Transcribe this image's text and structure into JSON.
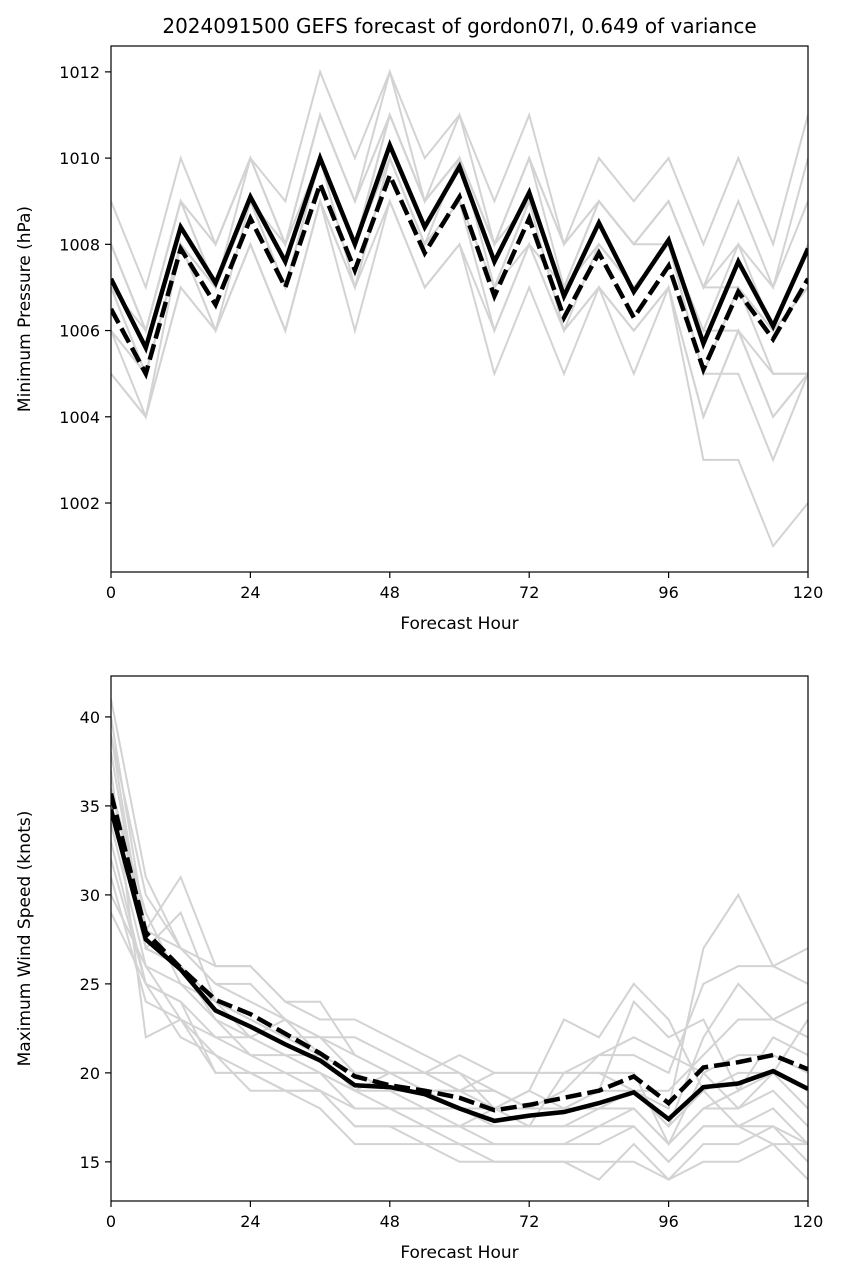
{
  "colors": {
    "member": "#d3d3d3",
    "mean": "#000000",
    "background": "#ffffff"
  },
  "chart_data": [
    {
      "type": "line",
      "title": "2024091500 GEFS forecast of gordon07l, 0.649 of variance",
      "xlabel": "Forecast Hour",
      "ylabel": "Minimum Pressure (hPa)",
      "xlim": [
        0,
        120
      ],
      "ylim": [
        1000.4,
        1012.6
      ],
      "xticks": [
        0,
        24,
        48,
        72,
        96,
        120
      ],
      "yticks": [
        1002,
        1004,
        1006,
        1008,
        1010,
        1012
      ],
      "x": [
        0,
        6,
        12,
        18,
        24,
        30,
        36,
        42,
        48,
        54,
        60,
        66,
        72,
        78,
        84,
        90,
        96,
        102,
        108,
        114,
        120
      ],
      "members": [
        [
          1009,
          1007,
          1010,
          1008,
          1010,
          1009,
          1012,
          1010,
          1012,
          1010,
          1011,
          1009,
          1011,
          1008,
          1010,
          1009,
          1010,
          1008,
          1010,
          1008,
          1011
        ],
        [
          1008,
          1006,
          1009,
          1008,
          1010,
          1008,
          1011,
          1009,
          1012,
          1009,
          1011,
          1008,
          1010,
          1008,
          1009,
          1008,
          1009,
          1007,
          1009,
          1007,
          1010
        ],
        [
          1008,
          1006,
          1009,
          1007,
          1010,
          1008,
          1011,
          1009,
          1011,
          1009,
          1010,
          1008,
          1010,
          1007,
          1009,
          1008,
          1009,
          1007,
          1008,
          1007,
          1009
        ],
        [
          1007,
          1005,
          1008,
          1007,
          1009,
          1007,
          1010,
          1008,
          1011,
          1009,
          1010,
          1008,
          1009,
          1007,
          1008,
          1007,
          1008,
          1006,
          1008,
          1006,
          1008
        ],
        [
          1006,
          1005,
          1008,
          1007,
          1009,
          1007,
          1010,
          1008,
          1010,
          1008,
          1010,
          1007,
          1009,
          1007,
          1008,
          1007,
          1008,
          1005,
          1007,
          1006,
          1007
        ],
        [
          1006,
          1004,
          1008,
          1006,
          1009,
          1007,
          1010,
          1007,
          1010,
          1008,
          1009,
          1007,
          1009,
          1006,
          1008,
          1007,
          1008,
          1005,
          1007,
          1006,
          1007
        ],
        [
          1005,
          1004,
          1007,
          1006,
          1008,
          1006,
          1009,
          1007,
          1010,
          1008,
          1009,
          1006,
          1008,
          1006,
          1007,
          1006,
          1007,
          1004,
          1006,
          1005,
          1005
        ],
        [
          1005,
          1004,
          1007,
          1006,
          1008,
          1006,
          1009,
          1006,
          1009,
          1007,
          1008,
          1005,
          1007,
          1005,
          1007,
          1005,
          1007,
          1004,
          1006,
          1004,
          1005
        ],
        [
          1006,
          1005,
          1008,
          1006,
          1008,
          1006,
          1009,
          1007,
          1009,
          1007,
          1008,
          1006,
          1008,
          1006,
          1007,
          1006,
          1007,
          1003,
          1003,
          1001,
          1002
        ],
        [
          1007,
          1005,
          1008,
          1007,
          1009,
          1007,
          1010,
          1008,
          1010,
          1008,
          1009,
          1007,
          1008,
          1007,
          1008,
          1007,
          1008,
          1005,
          1005,
          1003,
          1005
        ],
        [
          1007,
          1006,
          1009,
          1007,
          1009,
          1008,
          1010,
          1008,
          1011,
          1009,
          1010,
          1008,
          1009,
          1007,
          1009,
          1008,
          1008,
          1006,
          1006,
          1004,
          1005
        ],
        [
          1008,
          1006,
          1009,
          1008,
          1010,
          1008,
          1011,
          1009,
          1011,
          1009,
          1010,
          1008,
          1010,
          1008,
          1009,
          1008,
          1009,
          1007,
          1007,
          1005,
          1005
        ]
      ],
      "series": [
        {
          "values": [
            1007.2,
            1005.6,
            1008.4,
            1007.1,
            1009.1,
            1007.6,
            1010.0,
            1008.0,
            1010.3,
            1008.4,
            1009.8,
            1007.6,
            1009.2,
            1006.8,
            1008.5,
            1006.9,
            1008.1,
            1005.7,
            1007.6,
            1006.1,
            1007.9
          ],
          "style": "solid"
        },
        {
          "values": [
            1006.5,
            1005.0,
            1007.9,
            1006.6,
            1008.6,
            1007.0,
            1009.4,
            1007.4,
            1009.6,
            1007.8,
            1009.1,
            1006.8,
            1008.6,
            1006.3,
            1007.8,
            1006.3,
            1007.5,
            1005.1,
            1006.9,
            1005.8,
            1007.2
          ],
          "style": "dashed"
        }
      ]
    },
    {
      "type": "line",
      "title": "",
      "xlabel": "Forecast Hour",
      "ylabel": "Maximum Wind Speed (knots)",
      "xlim": [
        0,
        120
      ],
      "ylim": [
        12.8,
        42.3
      ],
      "xticks": [
        0,
        24,
        48,
        72,
        96,
        120
      ],
      "yticks": [
        15,
        20,
        25,
        30,
        35,
        40
      ],
      "x": [
        0,
        6,
        12,
        18,
        24,
        30,
        36,
        42,
        48,
        54,
        60,
        66,
        72,
        78,
        84,
        90,
        96,
        102,
        108,
        114,
        120
      ],
      "members": [
        [
          41,
          31,
          27,
          26,
          26,
          24,
          23,
          23,
          22,
          21,
          20,
          19,
          18,
          18,
          18,
          19,
          18,
          27,
          30,
          26,
          27
        ],
        [
          40,
          28,
          31,
          26,
          26,
          24,
          24,
          21,
          20,
          20,
          21,
          20,
          20,
          20,
          21,
          21,
          20,
          25,
          26,
          26,
          25
        ],
        [
          39,
          30,
          27,
          25,
          25,
          23,
          22,
          22,
          21,
          20,
          19,
          19,
          18,
          18,
          19,
          19,
          17,
          22,
          25,
          23,
          24
        ],
        [
          38,
          27,
          29,
          24,
          23,
          22,
          22,
          20,
          20,
          20,
          19,
          20,
          20,
          20,
          20,
          19,
          19,
          21,
          23,
          23,
          22
        ],
        [
          37,
          22,
          23,
          22,
          22,
          23,
          21,
          19,
          20,
          20,
          20,
          18,
          17,
          20,
          20,
          20,
          16,
          20,
          21,
          21,
          20
        ],
        [
          36,
          29,
          25,
          24,
          22,
          21,
          21,
          20,
          19,
          19,
          18,
          18,
          18,
          18,
          18,
          19,
          17,
          19,
          20,
          20,
          19
        ],
        [
          35,
          27,
          26,
          23,
          22,
          21,
          20,
          19,
          19,
          18,
          18,
          17,
          17,
          17,
          18,
          18,
          16,
          18,
          19,
          20,
          18
        ],
        [
          34,
          26,
          25,
          23,
          21,
          21,
          20,
          19,
          18,
          18,
          17,
          17,
          17,
          17,
          17,
          18,
          16,
          18,
          18,
          19,
          17
        ],
        [
          33,
          25,
          24,
          22,
          21,
          20,
          20,
          18,
          18,
          17,
          17,
          16,
          16,
          16,
          17,
          17,
          15,
          17,
          17,
          18,
          16
        ],
        [
          32,
          25,
          24,
          20,
          20,
          19,
          19,
          17,
          17,
          17,
          16,
          16,
          16,
          16,
          16,
          17,
          15,
          17,
          17,
          17,
          16
        ],
        [
          31,
          24,
          23,
          20,
          20,
          19,
          19,
          17,
          17,
          16,
          16,
          15,
          15,
          15,
          14,
          16,
          14,
          16,
          16,
          17,
          15
        ],
        [
          30,
          26,
          23,
          21,
          19,
          19,
          18,
          16,
          16,
          16,
          15,
          15,
          15,
          15,
          15,
          15,
          14,
          15,
          15,
          16,
          14
        ],
        [
          29,
          25,
          22,
          21,
          20,
          20,
          19,
          18,
          18,
          17,
          17,
          18,
          19,
          18,
          19,
          24,
          22,
          23,
          19,
          22,
          21
        ],
        [
          39,
          27,
          26,
          24,
          23,
          22,
          21,
          20,
          20,
          19,
          19,
          19,
          18,
          19,
          21,
          22,
          21,
          20,
          18,
          20,
          23
        ],
        [
          36,
          28,
          27,
          25,
          24,
          23,
          22,
          21,
          20,
          19,
          19,
          18,
          19,
          23,
          22,
          25,
          23,
          19,
          17,
          16,
          16
        ]
      ],
      "series": [
        {
          "values": [
            34.8,
            27.5,
            25.8,
            23.5,
            22.6,
            21.6,
            20.7,
            19.3,
            19.2,
            18.8,
            18.0,
            17.3,
            17.6,
            17.8,
            18.3,
            18.9,
            17.4,
            19.2,
            19.4,
            20.1,
            19.1
          ],
          "style": "solid"
        },
        {
          "values": [
            35.7,
            27.9,
            25.9,
            24.1,
            23.3,
            22.2,
            21.1,
            19.8,
            19.3,
            19.0,
            18.6,
            17.9,
            18.2,
            18.6,
            19.0,
            19.8,
            18.3,
            20.3,
            20.6,
            21.0,
            20.2
          ],
          "style": "dashed"
        }
      ]
    }
  ]
}
